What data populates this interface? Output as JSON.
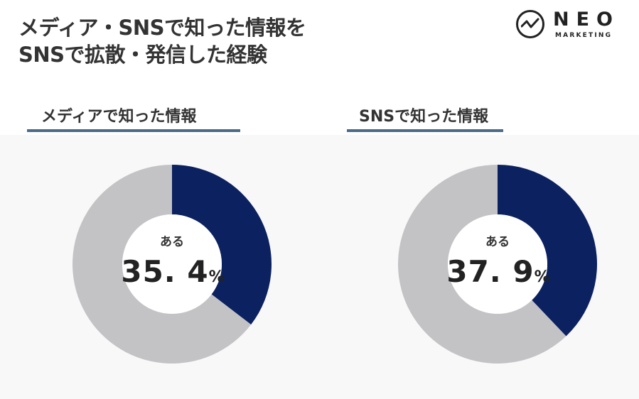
{
  "title": {
    "line1": "メディア・SNSで知った情報を",
    "line2": "SNSで拡散・発信した経験"
  },
  "logo": {
    "name": "NEO",
    "sub": "MARKETING"
  },
  "colors": {
    "primary": "#0b2160",
    "remainder": "#c3c3c6",
    "underline": "#4a6b8a"
  },
  "chart_data": [
    {
      "type": "pie",
      "title": "メディアで知った情報",
      "center_label": "ある",
      "value_text": "35. 4",
      "unit": "%",
      "slices": [
        {
          "label": "ある",
          "value": 35.4
        },
        {
          "label": "",
          "value": 64.6
        }
      ]
    },
    {
      "type": "pie",
      "title": "SNSで知った情報",
      "center_label": "ある",
      "value_text": "37. 9",
      "unit": "%",
      "slices": [
        {
          "label": "ある",
          "value": 37.9
        },
        {
          "label": "",
          "value": 62.1
        }
      ]
    }
  ]
}
